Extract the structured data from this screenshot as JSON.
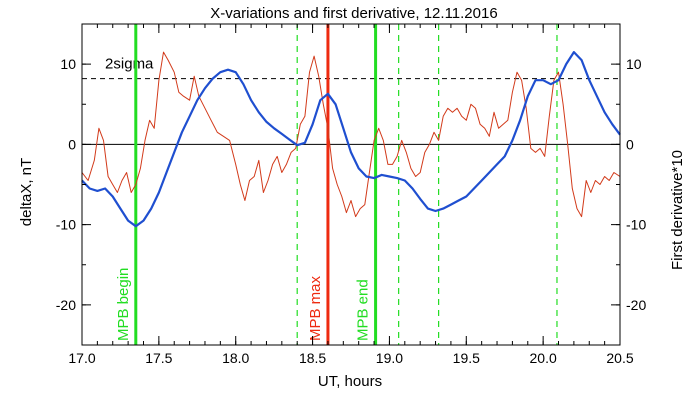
{
  "chart_data": {
    "type": "line",
    "title": "X-variations and first derivative, 12.11.2016",
    "xlabel": "UT, hours",
    "ylabel_left": "deltaX, nT",
    "ylabel_right": "First derivative*10",
    "xlim": [
      17.0,
      20.5
    ],
    "ylim": [
      -25,
      15
    ],
    "x_ticks": [
      17.0,
      17.5,
      18.0,
      18.5,
      19.0,
      19.5,
      20.0,
      20.5
    ],
    "x_tick_labels": [
      "17.0",
      "17.5",
      "18.0",
      "18.5",
      "19.0",
      "19.5",
      "20.0",
      "20.5"
    ],
    "y_ticks": [
      -20,
      -10,
      0,
      10
    ],
    "y_tick_labels": [
      "-20",
      "-10",
      "0",
      "10"
    ],
    "zero_line": 0,
    "threshold": {
      "label": "2sigma",
      "value": 8.2,
      "style": "dashed"
    },
    "colors": {
      "deltaX": "#1f4fd0",
      "derivative": "#d23a1a",
      "mpb": "#22dd22",
      "mpb_max": "#ee2a10"
    },
    "series": [
      {
        "key": "deltaX",
        "axis": "left",
        "color": "#1f4fd0",
        "x": [
          17.0,
          17.05,
          17.1,
          17.15,
          17.2,
          17.25,
          17.3,
          17.35,
          17.4,
          17.45,
          17.5,
          17.55,
          17.6,
          17.65,
          17.7,
          17.75,
          17.8,
          17.85,
          17.9,
          17.95,
          18.0,
          18.05,
          18.1,
          18.15,
          18.2,
          18.25,
          18.3,
          18.35,
          18.4,
          18.45,
          18.5,
          18.55,
          18.6,
          18.65,
          18.7,
          18.75,
          18.8,
          18.85,
          18.9,
          18.95,
          19.0,
          19.05,
          19.1,
          19.15,
          19.2,
          19.25,
          19.3,
          19.35,
          19.4,
          19.45,
          19.5,
          19.55,
          19.6,
          19.65,
          19.7,
          19.75,
          19.8,
          19.85,
          19.9,
          19.95,
          20.0,
          20.05,
          20.1,
          20.15,
          20.2,
          20.25,
          20.3,
          20.35,
          20.4,
          20.45,
          20.5
        ],
        "y": [
          -4.5,
          -5.5,
          -5.8,
          -5.5,
          -6.5,
          -8.0,
          -9.5,
          -10.2,
          -9.5,
          -8.0,
          -6.0,
          -3.5,
          -1.0,
          1.5,
          3.5,
          5.5,
          7.0,
          8.2,
          9.0,
          9.3,
          9.0,
          7.5,
          5.5,
          4.0,
          2.8,
          2.0,
          1.3,
          0.6,
          -0.1,
          0.2,
          2.5,
          5.5,
          6.3,
          5.0,
          2.0,
          -1.0,
          -3.0,
          -4.0,
          -4.2,
          -3.8,
          -4.0,
          -4.2,
          -4.5,
          -5.5,
          -6.8,
          -8.0,
          -8.3,
          -8.0,
          -7.5,
          -7.0,
          -6.5,
          -5.5,
          -4.5,
          -3.5,
          -2.5,
          -1.5,
          0.5,
          3.0,
          6.0,
          8.0,
          8.0,
          7.5,
          8.0,
          10.0,
          11.5,
          10.5,
          8.0,
          6.0,
          4.0,
          2.5,
          1.2
        ]
      },
      {
        "key": "derivative",
        "axis": "right",
        "color": "#d23a1a",
        "x": [
          17.0,
          17.04,
          17.08,
          17.11,
          17.14,
          17.17,
          17.2,
          17.23,
          17.26,
          17.29,
          17.32,
          17.35,
          17.38,
          17.41,
          17.44,
          17.47,
          17.5,
          17.53,
          17.56,
          17.6,
          17.63,
          17.66,
          17.7,
          17.73,
          17.76,
          17.8,
          17.84,
          17.88,
          17.92,
          17.96,
          18.0,
          18.03,
          18.06,
          18.09,
          18.12,
          18.15,
          18.18,
          18.21,
          18.24,
          18.27,
          18.3,
          18.33,
          18.36,
          18.39,
          18.42,
          18.45,
          18.48,
          18.51,
          18.54,
          18.57,
          18.6,
          18.63,
          18.66,
          18.69,
          18.72,
          18.75,
          18.78,
          18.81,
          18.84,
          18.87,
          18.9,
          18.93,
          18.96,
          18.99,
          19.02,
          19.05,
          19.08,
          19.11,
          19.14,
          19.17,
          19.2,
          19.23,
          19.26,
          19.29,
          19.32,
          19.35,
          19.38,
          19.41,
          19.44,
          19.47,
          19.5,
          19.53,
          19.56,
          19.59,
          19.62,
          19.65,
          19.68,
          19.71,
          19.74,
          19.77,
          19.8,
          19.83,
          19.86,
          19.89,
          19.92,
          19.95,
          19.98,
          20.01,
          20.04,
          20.07,
          20.1,
          20.13,
          20.16,
          20.19,
          20.22,
          20.25,
          20.28,
          20.31,
          20.34,
          20.37,
          20.4,
          20.43,
          20.46,
          20.5
        ],
        "y": [
          -3.5,
          -4.5,
          -2.0,
          2.0,
          0.5,
          -4.0,
          -5.0,
          -6.0,
          -4.5,
          -3.5,
          -6.0,
          -5.0,
          -3.0,
          0.5,
          3.0,
          2.0,
          8.0,
          11.5,
          10.5,
          9.0,
          6.5,
          6.0,
          5.5,
          8.5,
          6.0,
          4.5,
          3.0,
          1.5,
          1.0,
          0.5,
          -2.5,
          -5.0,
          -7.0,
          -4.5,
          -4.0,
          -2.0,
          -6.0,
          -4.5,
          -2.5,
          -1.5,
          -3.5,
          -2.5,
          -1.0,
          -0.5,
          2.5,
          3.5,
          9.0,
          11.0,
          8.5,
          5.0,
          2.0,
          -3.0,
          -5.0,
          -6.5,
          -8.5,
          -7.0,
          -9.0,
          -8.0,
          -7.5,
          -3.5,
          0.5,
          2.0,
          0.5,
          -2.5,
          -2.5,
          -1.5,
          0.5,
          -1.0,
          -3.0,
          -4.0,
          -3.5,
          -1.0,
          0.0,
          1.5,
          0.5,
          3.5,
          4.5,
          4.0,
          4.5,
          3.5,
          3.0,
          5.0,
          4.5,
          2.5,
          2.0,
          1.0,
          4.0,
          2.0,
          2.5,
          3.0,
          6.5,
          9.0,
          8.0,
          4.5,
          -0.5,
          -1.0,
          -0.5,
          -1.5,
          3.5,
          8.0,
          9.0,
          5.0,
          0.0,
          -5.5,
          -8.0,
          -9.0,
          -4.5,
          -6.0,
          -4.5,
          -5.0,
          -4.0,
          -4.5,
          -3.5,
          -4.0
        ]
      }
    ],
    "vertical_lines": [
      {
        "x": 17.35,
        "label": "MPB begin",
        "style": "solid",
        "color": "#22dd22"
      },
      {
        "x": 18.4,
        "label": "",
        "style": "dashed",
        "color": "#22dd22"
      },
      {
        "x": 18.6,
        "label": "MPB max",
        "style": "solid",
        "color": "#ee2a10"
      },
      {
        "x": 18.91,
        "label": "MPB end",
        "style": "solid",
        "color": "#22dd22"
      },
      {
        "x": 19.06,
        "label": "",
        "style": "dashed",
        "color": "#22dd22"
      },
      {
        "x": 19.32,
        "label": "",
        "style": "dashed",
        "color": "#22dd22"
      },
      {
        "x": 20.09,
        "label": "",
        "style": "dashed",
        "color": "#22dd22"
      }
    ]
  }
}
